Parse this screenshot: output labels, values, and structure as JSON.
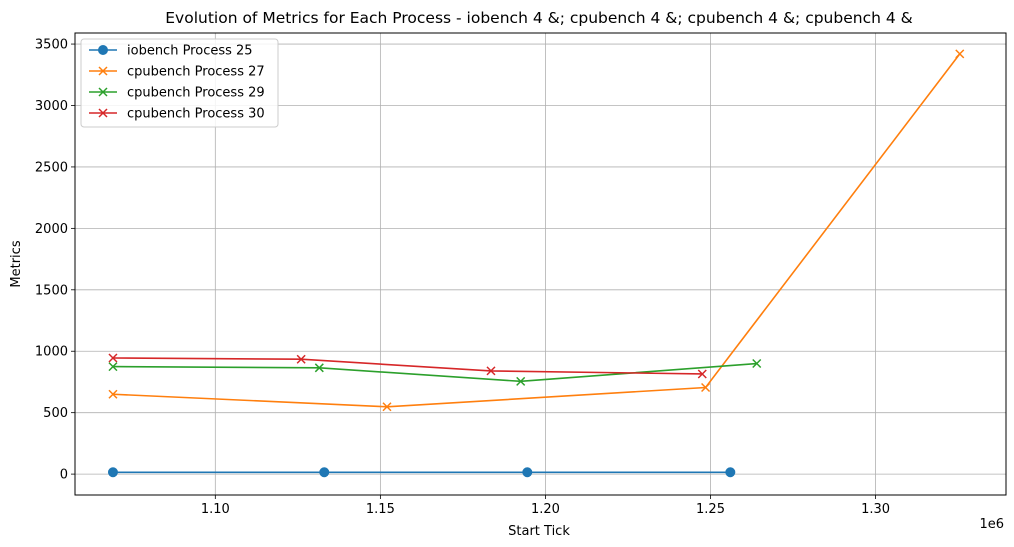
{
  "chart_data": {
    "type": "line",
    "title": "Evolution of Metrics for Each Process - iobench 4 &; cpubench 4 &; cpubench 4 &; cpubench 4 &",
    "xlabel": "Start Tick",
    "ylabel": "Metrics",
    "x_offset_label": "1e6",
    "xlim": [
      1.0575,
      1.3395
    ],
    "ylim": [
      -170,
      3590
    ],
    "x_ticks": [
      1.1,
      1.15,
      1.2,
      1.25,
      1.3
    ],
    "x_tick_labels": [
      "1.10",
      "1.15",
      "1.20",
      "1.25",
      "1.30"
    ],
    "y_ticks": [
      0,
      500,
      1000,
      1500,
      2000,
      2500,
      3000,
      3500
    ],
    "y_tick_labels": [
      "0",
      "500",
      "1000",
      "1500",
      "2000",
      "2500",
      "3000",
      "3500"
    ],
    "grid": true,
    "legend_position": "upper-left",
    "series": [
      {
        "name": "iobench Process 25",
        "color": "#1f77b4",
        "marker": "circle",
        "x": [
          1.069,
          1.133,
          1.1945,
          1.256
        ],
        "y": [
          15,
          15,
          15,
          15
        ]
      },
      {
        "name": "cpubench Process 27",
        "color": "#ff7f0e",
        "marker": "x",
        "x": [
          1.069,
          1.152,
          1.2485,
          1.3255
        ],
        "y": [
          650,
          548,
          705,
          3420
        ]
      },
      {
        "name": "cpubench Process 29",
        "color": "#2ca02c",
        "marker": "x",
        "x": [
          1.069,
          1.1315,
          1.1925,
          1.264
        ],
        "y": [
          875,
          865,
          755,
          900
        ]
      },
      {
        "name": "cpubench Process 30",
        "color": "#d62728",
        "marker": "x",
        "x": [
          1.069,
          1.126,
          1.1835,
          1.2475
        ],
        "y": [
          945,
          935,
          840,
          815
        ]
      }
    ]
  }
}
